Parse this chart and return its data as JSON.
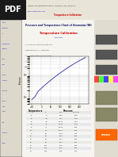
{
  "page_bg": "#c8c0b0",
  "content_bg": "#f5f4ee",
  "white": "#ffffff",
  "pdf_bg": "#1a1a1a",
  "pdf_text": "#ffffff",
  "header_bg": "#e8e4d8",
  "nav_bg": "#ddd8cc",
  "chart_curve_color": "#4444aa",
  "chart_grid_color": "#999999",
  "chart_bg": "#ffffff",
  "right_ad_bg": "#e0ddd0",
  "orange_btn": "#ff6600",
  "red_link": "#cc0000",
  "blue_link": "#0000cc",
  "title_color": "#cc2200",
  "body_text": "#333333",
  "temp_data": [
    -60,
    -40,
    -20,
    0,
    20,
    40,
    60,
    80,
    100,
    120,
    140,
    160,
    180,
    200,
    220,
    240,
    260,
    280
  ],
  "pressure_data": [
    7.67,
    10.41,
    18.3,
    24.86,
    33.47,
    44.4,
    58.33,
    75.98,
    97.59,
    124.3,
    157.2,
    197.2,
    245.2,
    302.0,
    368.0,
    444.0,
    530.0,
    628.0
  ],
  "xlim": [
    -75,
    300
  ],
  "ylim": [
    5,
    700
  ]
}
